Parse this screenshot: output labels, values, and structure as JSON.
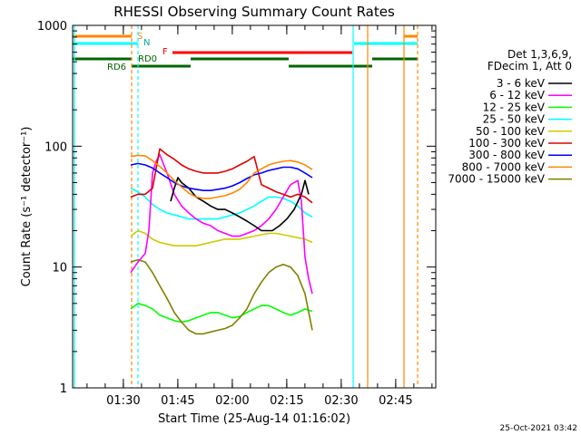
{
  "chart_data": {
    "type": "line",
    "title": "RHESSI Observing Summary Count Rates",
    "xlabel": "Start Time (25-Aug-14 01:16:02)",
    "ylabel": "Count Rate (s⁻¹ detector⁻¹)",
    "ylim": [
      1,
      1000
    ],
    "yscale": "log",
    "xlim_minutes_after_start": [
      0,
      100
    ],
    "x_ticks": [
      "01:30",
      "01:45",
      "02:00",
      "02:15",
      "02:30",
      "02:45"
    ],
    "y_ticks": [
      "1",
      "10",
      "100",
      "1000"
    ],
    "footer_timestamp": "25-Oct-2021 03:42",
    "legend": {
      "header": [
        "Det 1,3,6,9,",
        "FDecim 1, Att 0"
      ],
      "placement": "right"
    },
    "flag_labels": {
      "S": "S",
      "N": "N",
      "F": "F",
      "RD0": "RD0",
      "RD6": "RD6"
    },
    "series": [
      {
        "name": "3 - 6 keV",
        "color": "#000000",
        "values": [
          [
            16,
            null
          ],
          [
            20,
            null
          ],
          [
            26,
            null
          ],
          [
            27,
            35
          ],
          [
            28,
            45
          ],
          [
            29,
            55
          ],
          [
            30,
            50
          ],
          [
            32,
            45
          ],
          [
            34,
            38
          ],
          [
            36,
            35
          ],
          [
            38,
            32
          ],
          [
            40,
            30
          ],
          [
            42,
            30
          ],
          [
            44,
            28
          ],
          [
            46,
            26
          ],
          [
            48,
            24
          ],
          [
            50,
            22
          ],
          [
            52,
            20
          ],
          [
            55,
            20
          ],
          [
            57,
            22
          ],
          [
            59,
            25
          ],
          [
            61,
            30
          ],
          [
            63,
            40
          ],
          [
            64,
            52
          ],
          [
            65,
            40
          ],
          [
            66,
            null
          ]
        ]
      },
      {
        "name": "6 - 12 keV",
        "color": "#ff00ff",
        "values": [
          [
            16,
            9
          ],
          [
            18,
            11
          ],
          [
            20,
            13
          ],
          [
            21,
            20
          ],
          [
            22,
            60
          ],
          [
            23,
            75
          ],
          [
            24,
            85
          ],
          [
            26,
            60
          ],
          [
            28,
            40
          ],
          [
            30,
            32
          ],
          [
            32,
            28
          ],
          [
            34,
            25
          ],
          [
            36,
            23
          ],
          [
            38,
            22
          ],
          [
            40,
            20
          ],
          [
            42,
            19
          ],
          [
            44,
            18
          ],
          [
            46,
            18
          ],
          [
            48,
            19
          ],
          [
            50,
            20
          ],
          [
            52,
            22
          ],
          [
            54,
            25
          ],
          [
            56,
            30
          ],
          [
            58,
            38
          ],
          [
            60,
            48
          ],
          [
            62,
            52
          ],
          [
            63,
            35
          ],
          [
            64,
            12
          ],
          [
            65,
            8
          ],
          [
            66,
            6
          ]
        ]
      },
      {
        "name": "12 - 25 keV",
        "color": "#00ff00",
        "values": [
          [
            16,
            4.5
          ],
          [
            18,
            5.0
          ],
          [
            20,
            4.8
          ],
          [
            22,
            4.5
          ],
          [
            24,
            4.0
          ],
          [
            26,
            3.8
          ],
          [
            28,
            3.6
          ],
          [
            30,
            3.5
          ],
          [
            32,
            3.6
          ],
          [
            34,
            3.8
          ],
          [
            36,
            4.0
          ],
          [
            38,
            4.2
          ],
          [
            40,
            4.2
          ],
          [
            42,
            4.0
          ],
          [
            44,
            3.8
          ],
          [
            46,
            3.9
          ],
          [
            48,
            4.2
          ],
          [
            50,
            4.5
          ],
          [
            52,
            4.8
          ],
          [
            54,
            4.8
          ],
          [
            56,
            4.5
          ],
          [
            58,
            4.2
          ],
          [
            60,
            4.0
          ],
          [
            62,
            4.2
          ],
          [
            64,
            4.5
          ],
          [
            66,
            4.3
          ]
        ]
      },
      {
        "name": "25 - 50 keV",
        "color": "#00ffff",
        "values": [
          [
            16,
            45
          ],
          [
            18,
            42
          ],
          [
            20,
            38
          ],
          [
            22,
            33
          ],
          [
            24,
            30
          ],
          [
            26,
            28
          ],
          [
            28,
            27
          ],
          [
            30,
            26
          ],
          [
            32,
            25
          ],
          [
            34,
            25
          ],
          [
            36,
            25
          ],
          [
            38,
            25
          ],
          [
            40,
            25
          ],
          [
            42,
            26
          ],
          [
            44,
            27
          ],
          [
            46,
            28
          ],
          [
            48,
            30
          ],
          [
            50,
            32
          ],
          [
            52,
            35
          ],
          [
            54,
            38
          ],
          [
            56,
            38
          ],
          [
            58,
            37
          ],
          [
            60,
            35
          ],
          [
            62,
            32
          ],
          [
            64,
            28
          ],
          [
            66,
            26
          ]
        ]
      },
      {
        "name": "50 - 100 keV",
        "color": "#cccc00",
        "values": [
          [
            16,
            18
          ],
          [
            18,
            20
          ],
          [
            20,
            19
          ],
          [
            22,
            17
          ],
          [
            24,
            16
          ],
          [
            26,
            15.5
          ],
          [
            28,
            15
          ],
          [
            30,
            15
          ],
          [
            32,
            15
          ],
          [
            34,
            15
          ],
          [
            36,
            15.5
          ],
          [
            38,
            16
          ],
          [
            40,
            16.5
          ],
          [
            42,
            17
          ],
          [
            44,
            17
          ],
          [
            46,
            17
          ],
          [
            48,
            17.5
          ],
          [
            50,
            18
          ],
          [
            52,
            18.5
          ],
          [
            54,
            19
          ],
          [
            56,
            19
          ],
          [
            58,
            18.5
          ],
          [
            60,
            18
          ],
          [
            62,
            17.5
          ],
          [
            64,
            17
          ],
          [
            66,
            16
          ]
        ]
      },
      {
        "name": "100 - 300 keV",
        "color": "#dd0000",
        "values": [
          [
            16,
            38
          ],
          [
            18,
            40
          ],
          [
            20,
            40
          ],
          [
            22,
            45
          ],
          [
            24,
            95
          ],
          [
            26,
            85
          ],
          [
            28,
            78
          ],
          [
            30,
            70
          ],
          [
            32,
            65
          ],
          [
            34,
            62
          ],
          [
            36,
            60
          ],
          [
            38,
            60
          ],
          [
            40,
            60
          ],
          [
            42,
            62
          ],
          [
            44,
            65
          ],
          [
            46,
            70
          ],
          [
            48,
            75
          ],
          [
            50,
            82
          ],
          [
            52,
            48
          ],
          [
            54,
            45
          ],
          [
            56,
            42
          ],
          [
            58,
            40
          ],
          [
            60,
            38
          ],
          [
            62,
            40
          ],
          [
            64,
            38
          ],
          [
            66,
            34
          ]
        ]
      },
      {
        "name": "300 - 800 keV",
        "color": "#0000ff",
        "values": [
          [
            16,
            70
          ],
          [
            18,
            72
          ],
          [
            20,
            70
          ],
          [
            22,
            66
          ],
          [
            24,
            60
          ],
          [
            26,
            55
          ],
          [
            28,
            50
          ],
          [
            30,
            47
          ],
          [
            32,
            45
          ],
          [
            34,
            44
          ],
          [
            36,
            43
          ],
          [
            38,
            43
          ],
          [
            40,
            44
          ],
          [
            42,
            45
          ],
          [
            44,
            47
          ],
          [
            46,
            50
          ],
          [
            48,
            54
          ],
          [
            50,
            58
          ],
          [
            52,
            60
          ],
          [
            54,
            63
          ],
          [
            56,
            65
          ],
          [
            58,
            67
          ],
          [
            60,
            67
          ],
          [
            62,
            65
          ],
          [
            64,
            60
          ],
          [
            66,
            55
          ]
        ]
      },
      {
        "name": "800 - 7000 keV",
        "color": "#ff8800",
        "values": [
          [
            16,
            82
          ],
          [
            18,
            84
          ],
          [
            20,
            83
          ],
          [
            22,
            76
          ],
          [
            24,
            68
          ],
          [
            26,
            60
          ],
          [
            28,
            52
          ],
          [
            30,
            46
          ],
          [
            32,
            41
          ],
          [
            34,
            38
          ],
          [
            36,
            37
          ],
          [
            38,
            37
          ],
          [
            40,
            38
          ],
          [
            42,
            39
          ],
          [
            44,
            41
          ],
          [
            46,
            44
          ],
          [
            48,
            50
          ],
          [
            50,
            60
          ],
          [
            52,
            65
          ],
          [
            54,
            70
          ],
          [
            56,
            73
          ],
          [
            58,
            75
          ],
          [
            60,
            76
          ],
          [
            62,
            74
          ],
          [
            64,
            70
          ],
          [
            66,
            64
          ]
        ]
      },
      {
        "name": "7000 - 15000 keV",
        "color": "#808000",
        "values": [
          [
            16,
            11
          ],
          [
            18,
            11.5
          ],
          [
            20,
            11
          ],
          [
            22,
            9
          ],
          [
            24,
            7
          ],
          [
            26,
            5.5
          ],
          [
            28,
            4.2
          ],
          [
            30,
            3.5
          ],
          [
            32,
            3.0
          ],
          [
            34,
            2.8
          ],
          [
            36,
            2.8
          ],
          [
            38,
            2.9
          ],
          [
            40,
            3.0
          ],
          [
            42,
            3.1
          ],
          [
            44,
            3.3
          ],
          [
            46,
            3.8
          ],
          [
            48,
            4.5
          ],
          [
            50,
            6
          ],
          [
            52,
            7.5
          ],
          [
            54,
            9
          ],
          [
            56,
            10
          ],
          [
            58,
            10.5
          ],
          [
            60,
            10
          ],
          [
            62,
            8.5
          ],
          [
            64,
            6
          ],
          [
            66,
            3
          ]
        ]
      }
    ]
  }
}
